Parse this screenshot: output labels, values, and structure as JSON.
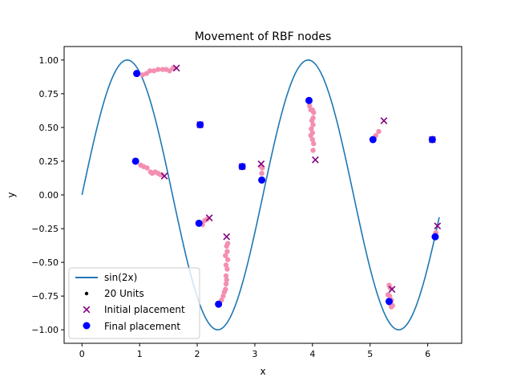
{
  "chart_data": {
    "type": "scatter",
    "title": "Movement of RBF nodes",
    "xlabel": "x",
    "ylabel": "y",
    "xlim": [
      -0.31,
      6.59
    ],
    "ylim": [
      -1.1,
      1.1
    ],
    "xticks": [
      0,
      1,
      2,
      3,
      4,
      5,
      6
    ],
    "yticks": [
      -1.0,
      -0.75,
      -0.5,
      -0.25,
      0.0,
      0.25,
      0.5,
      0.75,
      1.0
    ],
    "ytick_labels": [
      "−1.00",
      "−0.75",
      "−0.50",
      "−0.25",
      "0.00",
      "0.25",
      "0.50",
      "0.75",
      "1.00"
    ],
    "grid": false,
    "legend_position": "lower-left",
    "legend": {
      "curve": "sin(2x)",
      "units": "20 Units",
      "initial": "Initial placement",
      "final": "Final placement"
    },
    "colors": {
      "curve": "#1f77b4",
      "trail": "#f48fb1",
      "initial": "#800080",
      "final": "#0000ff"
    },
    "curve": {
      "function": "sin(2x)",
      "x_start": 0.0,
      "x_end": 6.2
    },
    "initial_placement": [
      [
        1.64,
        0.94
      ],
      [
        1.43,
        0.14
      ],
      [
        2.21,
        -0.17
      ],
      [
        2.51,
        -0.31
      ],
      [
        3.11,
        0.23
      ],
      [
        4.05,
        0.26
      ],
      [
        5.24,
        0.55
      ],
      [
        5.38,
        -0.7
      ],
      [
        6.17,
        -0.23
      ],
      [
        2.05,
        0.52
      ],
      [
        2.78,
        0.21
      ],
      [
        6.08,
        0.41
      ]
    ],
    "final_placement": [
      [
        0.95,
        0.9
      ],
      [
        0.93,
        0.25
      ],
      [
        2.03,
        -0.21
      ],
      [
        2.37,
        -0.81
      ],
      [
        3.12,
        0.11
      ],
      [
        3.94,
        0.7
      ],
      [
        5.05,
        0.41
      ],
      [
        5.33,
        -0.79
      ],
      [
        6.13,
        -0.31
      ],
      [
        2.05,
        0.52
      ],
      [
        2.78,
        0.21
      ],
      [
        6.08,
        0.41
      ]
    ],
    "trails": [
      [
        [
          1.05,
          0.89
        ],
        [
          1.12,
          0.9
        ],
        [
          1.18,
          0.92
        ],
        [
          1.25,
          0.92
        ],
        [
          1.32,
          0.93
        ],
        [
          1.4,
          0.93
        ],
        [
          1.46,
          0.93
        ],
        [
          1.52,
          0.92
        ],
        [
          1.58,
          0.94
        ]
      ],
      [
        [
          1.02,
          0.22
        ],
        [
          1.07,
          0.21
        ],
        [
          1.13,
          0.2
        ],
        [
          1.19,
          0.17
        ],
        [
          1.22,
          0.16
        ],
        [
          1.27,
          0.17
        ],
        [
          1.32,
          0.16
        ],
        [
          1.36,
          0.15
        ],
        [
          1.38,
          0.15
        ]
      ],
      [
        [
          2.06,
          -0.21
        ],
        [
          2.09,
          -0.22
        ],
        [
          2.13,
          -0.19
        ],
        [
          2.17,
          -0.18
        ]
      ],
      [
        [
          2.42,
          -0.78
        ],
        [
          2.45,
          -0.75
        ],
        [
          2.47,
          -0.72
        ],
        [
          2.49,
          -0.7
        ],
        [
          2.5,
          -0.66
        ],
        [
          2.51,
          -0.63
        ],
        [
          2.5,
          -0.6
        ],
        [
          2.52,
          -0.55
        ],
        [
          2.5,
          -0.52
        ],
        [
          2.53,
          -0.48
        ],
        [
          2.49,
          -0.45
        ],
        [
          2.52,
          -0.42
        ],
        [
          2.51,
          -0.38
        ],
        [
          2.53,
          -0.36
        ]
      ],
      [
        [
          3.12,
          0.16
        ],
        [
          3.13,
          0.2
        ],
        [
          3.11,
          0.21
        ]
      ],
      [
        [
          3.95,
          0.66
        ],
        [
          3.97,
          0.63
        ],
        [
          4.0,
          0.63
        ],
        [
          4.02,
          0.61
        ],
        [
          4.01,
          0.57
        ],
        [
          3.99,
          0.55
        ],
        [
          4.01,
          0.52
        ],
        [
          3.98,
          0.49
        ],
        [
          4.0,
          0.46
        ],
        [
          3.97,
          0.44
        ],
        [
          4.0,
          0.41
        ],
        [
          4.02,
          0.38
        ],
        [
          4.01,
          0.33
        ]
      ],
      [
        [
          5.1,
          0.44
        ],
        [
          5.15,
          0.47
        ]
      ],
      [
        [
          5.33,
          -0.67
        ],
        [
          5.35,
          -0.69
        ],
        [
          5.31,
          -0.74
        ],
        [
          5.34,
          -0.75
        ],
        [
          5.37,
          -0.78
        ],
        [
          5.33,
          -0.8
        ],
        [
          5.36,
          -0.81
        ],
        [
          5.39,
          -0.82
        ],
        [
          5.37,
          -0.83
        ]
      ],
      [
        [
          6.14,
          -0.28
        ]
      ]
    ]
  }
}
